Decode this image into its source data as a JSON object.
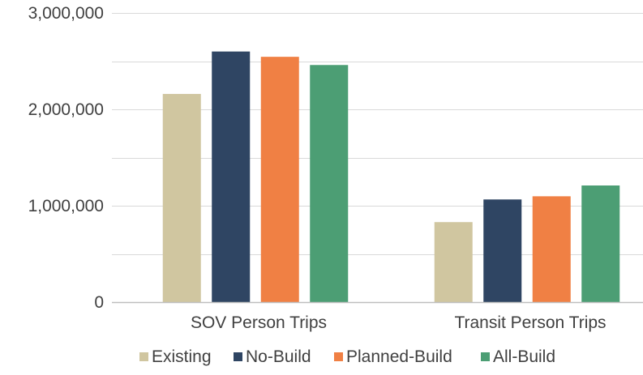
{
  "chart_data": {
    "type": "bar",
    "title": "",
    "xlabel": "",
    "ylabel": "",
    "categories": [
      "SOV Person Trips",
      "Transit Person Trips"
    ],
    "series": [
      {
        "name": "Existing",
        "color": "#D0C6A0",
        "values": [
          2160000,
          830000
        ]
      },
      {
        "name": "No-Build",
        "color": "#2F4563",
        "values": [
          2600000,
          1065000
        ]
      },
      {
        "name": "Planned-Build",
        "color": "#F08044",
        "values": [
          2545000,
          1098000
        ]
      },
      {
        "name": "All-Build",
        "color": "#4C9E74",
        "values": [
          2460000,
          1210000
        ]
      }
    ],
    "ylim": [
      0,
      3000000
    ],
    "yticks": [
      0,
      1000000,
      2000000,
      3000000
    ],
    "ytick_labels": [
      "0",
      "1,000,000",
      "2,000,000",
      "3,000,000"
    ],
    "grid": true,
    "legend_position": "bottom"
  }
}
